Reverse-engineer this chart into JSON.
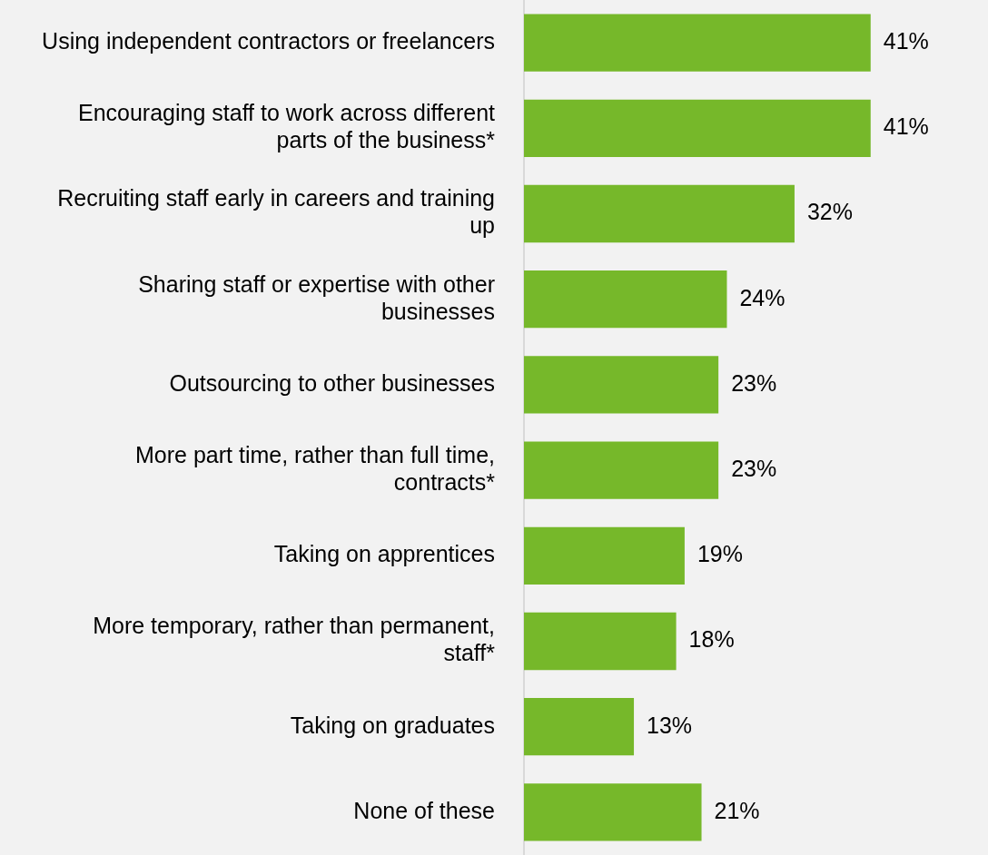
{
  "chart_data": {
    "type": "bar",
    "orientation": "horizontal",
    "categories": [
      "Using independent contractors or freelancers",
      "Encouraging staff to work across different parts of the business*",
      "Recruiting staff early in careers and training up",
      "Sharing staff or expertise with other businesses",
      "Outsourcing to other businesses",
      "More part time, rather than full time, contracts*",
      "Taking on apprentices",
      "More temporary, rather than permanent, staff*",
      "Taking on graduates",
      "None of these"
    ],
    "values": [
      41,
      41,
      32,
      24,
      23,
      23,
      19,
      18,
      13,
      21
    ],
    "value_labels": [
      "41%",
      "41%",
      "32%",
      "24%",
      "23%",
      "23%",
      "19%",
      "18%",
      "13%",
      "21%"
    ],
    "color": "#76b82a",
    "legend": false
  }
}
